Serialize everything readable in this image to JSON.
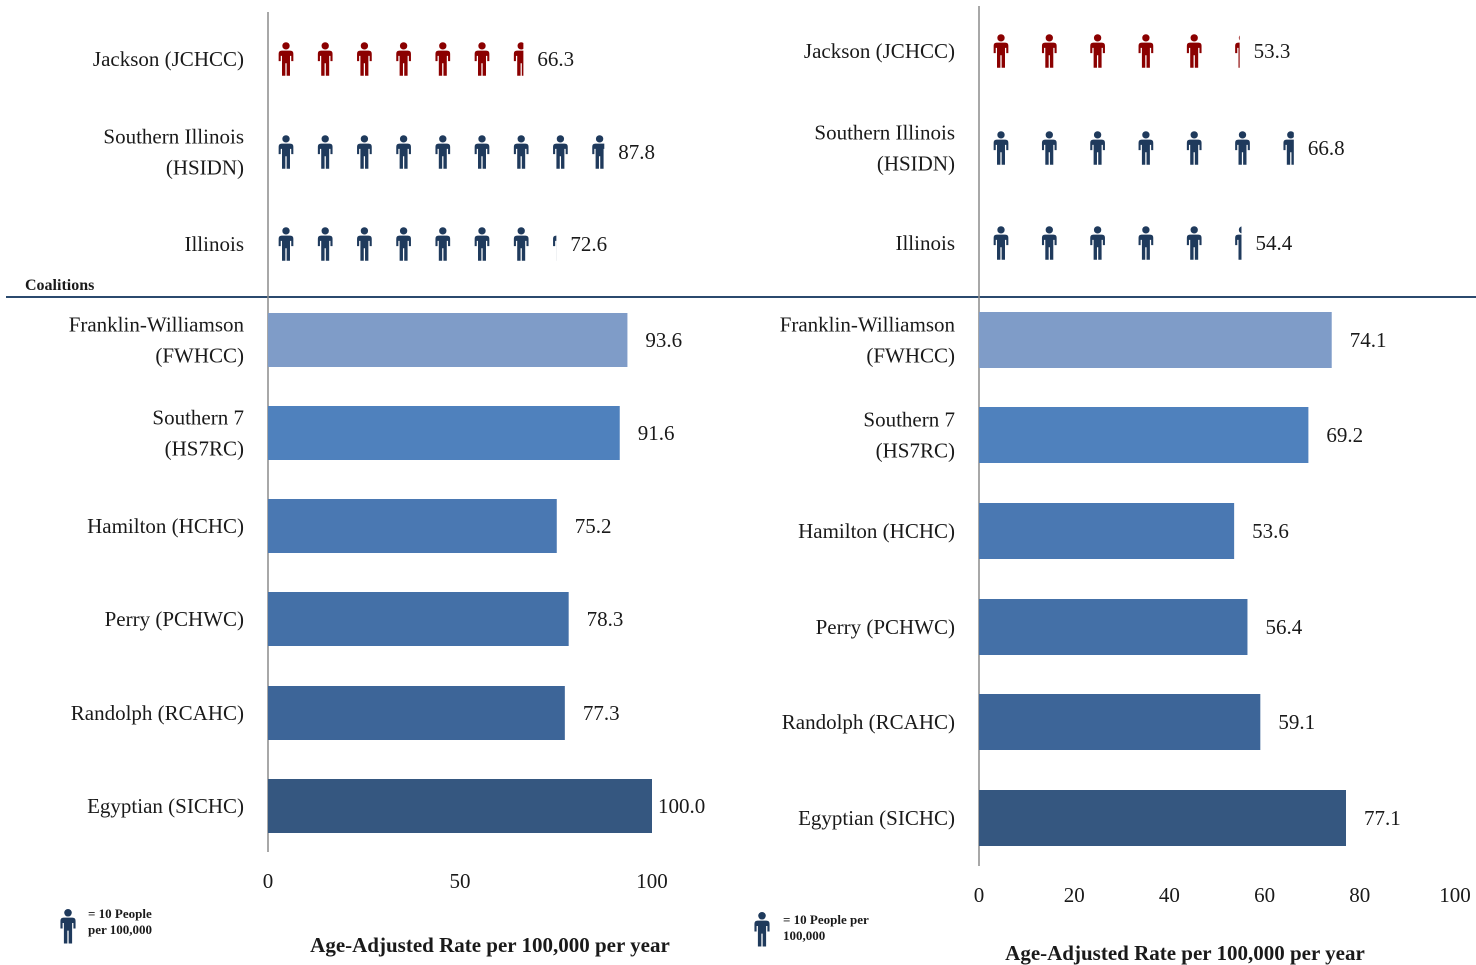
{
  "section_label": "Coalitions",
  "legend": [
    {
      "icon": "person-icon",
      "line1": "= 10 People",
      "line2": "per 100,000"
    },
    {
      "icon": "person-icon",
      "line1": "= 10 People per",
      "line2": "100,000"
    }
  ],
  "chart_data": [
    {
      "type": "bar",
      "orientation": "horizontal",
      "xlabel": "Age-Adjusted Rate per 100,000 per year",
      "xlim": [
        0,
        100
      ],
      "xticks": [
        0,
        50,
        100
      ],
      "icon_unit": 10,
      "icon_rows": [
        {
          "label": "Jackson (JCHCC)",
          "value": 66.3,
          "value_label": "66.3",
          "color": "#8b0000"
        },
        {
          "label": "Southern Illinois (HSIDN)",
          "value": 87.8,
          "value_label": "87.8",
          "color": "#1f3a5c"
        },
        {
          "label": "Illinois",
          "value": 72.6,
          "value_label": "72.6",
          "color": "#1f3a5c"
        }
      ],
      "bars": [
        {
          "label": "Franklin-Williamson (FWHCC)",
          "value": 93.6,
          "value_label": "93.6",
          "color": "#7f9cc8"
        },
        {
          "label": "Southern 7 (HS7RC)",
          "value": 91.6,
          "value_label": "91.6",
          "color": "#4f81bd"
        },
        {
          "label": "Hamilton (HCHC)",
          "value": 75.2,
          "value_label": "75.2",
          "color": "#4a78b2"
        },
        {
          "label": "Perry (PCHWC)",
          "value": 78.3,
          "value_label": "78.3",
          "color": "#4470a7"
        },
        {
          "label": "Randolph (RCAHC)",
          "value": 77.3,
          "value_label": "77.3",
          "color": "#3d6598"
        },
        {
          "label": "Egyptian (SICHC)",
          "value": 100.0,
          "value_label": "100.0",
          "color": "#355780"
        }
      ]
    },
    {
      "type": "bar",
      "orientation": "horizontal",
      "xlabel": "Age-Adjusted Rate per 100,000 per year",
      "xlim": [
        0,
        100
      ],
      "xticks": [
        0,
        20,
        40,
        60,
        80,
        100
      ],
      "icon_unit": 10,
      "icon_rows": [
        {
          "label": "Jackson (JCHCC)",
          "value": 53.3,
          "value_label": "53.3",
          "color": "#8b0000"
        },
        {
          "label": "Southern Illinois (HSIDN)",
          "value": 66.8,
          "value_label": "66.8",
          "color": "#1f3a5c"
        },
        {
          "label": "Illinois",
          "value": 54.4,
          "value_label": "54.4",
          "color": "#1f3a5c"
        }
      ],
      "bars": [
        {
          "label": "Franklin-Williamson (FWHCC)",
          "value": 74.1,
          "value_label": "74.1",
          "color": "#7f9cc8"
        },
        {
          "label": "Southern 7 (HS7RC)",
          "value": 69.2,
          "value_label": "69.2",
          "color": "#4f81bd"
        },
        {
          "label": "Hamilton (HCHC)",
          "value": 53.6,
          "value_label": "53.6",
          "color": "#4a78b2"
        },
        {
          "label": "Perry (PCHWC)",
          "value": 56.4,
          "value_label": "56.4",
          "color": "#4470a7"
        },
        {
          "label": "Randolph (RCAHC)",
          "value": 59.1,
          "value_label": "59.1",
          "color": "#3d6598"
        },
        {
          "label": "Egyptian (SICHC)",
          "value": 77.1,
          "value_label": "77.1",
          "color": "#355780"
        }
      ]
    }
  ]
}
